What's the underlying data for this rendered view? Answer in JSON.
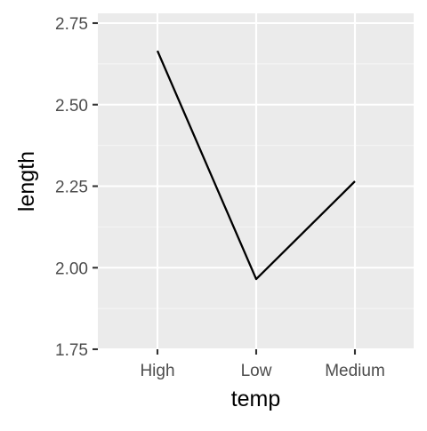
{
  "chart_data": {
    "type": "line",
    "categories": [
      "High",
      "Low",
      "Medium"
    ],
    "series": [
      {
        "values": [
          2.665,
          1.965,
          2.265
        ]
      }
    ],
    "xlabel": "temp",
    "ylabel": "length",
    "ylim": [
      1.75,
      2.78
    ],
    "yticks": [
      1.75,
      2.0,
      2.25,
      2.5,
      2.75
    ],
    "ytick_labels": [
      "1.75",
      "2.00",
      "2.25",
      "2.50",
      "2.75"
    ],
    "grid": true,
    "legend": "none",
    "colors": {
      "panel": "#ebebeb",
      "grid_major": "#ffffff",
      "line": "#000000",
      "axis_text": "#4d4d4d",
      "axis_title": "#000000",
      "ticks": "#333333"
    }
  }
}
